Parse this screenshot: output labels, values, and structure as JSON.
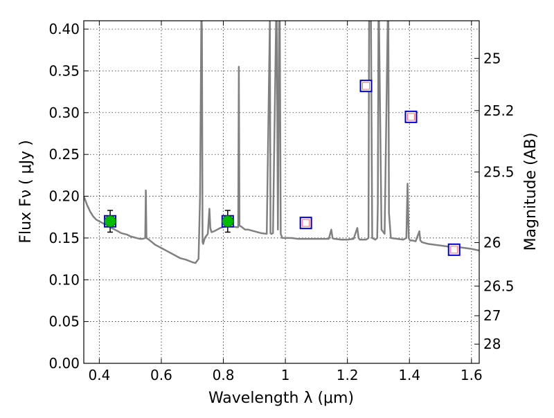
{
  "chart_data": {
    "type": "line",
    "xlabel": "Wavelength  λ (μm)",
    "ylabel": "Flux  Fν ( μJy )",
    "y2label": "Magnitude (AB)",
    "xlim": [
      0.35,
      1.625
    ],
    "ylim": [
      0.0,
      0.41
    ],
    "grid": true,
    "x_ticks": [
      0.4,
      0.6,
      0.8,
      1.0,
      1.2,
      1.4,
      1.6
    ],
    "x_tick_labels": [
      "0.4",
      "0.6",
      "0.8",
      "1",
      "1.2",
      "1.4",
      "1.6"
    ],
    "y_ticks": [
      0.0,
      0.05,
      0.1,
      0.15,
      0.2,
      0.25,
      0.3,
      0.35,
      0.4
    ],
    "y_tick_labels": [
      "0.00",
      "0.05",
      "0.10",
      "0.15",
      "0.20",
      "0.25",
      "0.30",
      "0.35",
      "0.40"
    ],
    "y2_ticks": [
      {
        "label": "25",
        "flux": 0.365
      },
      {
        "label": "25.2",
        "flux": 0.3025
      },
      {
        "label": "25.5",
        "flux": 0.229
      },
      {
        "label": "26",
        "flux": 0.1445
      },
      {
        "label": "26.5",
        "flux": 0.0925
      },
      {
        "label": "27",
        "flux": 0.057
      },
      {
        "label": "28",
        "flux": 0.023
      }
    ],
    "series": [
      {
        "role": "model-spectrum",
        "color": "#808080",
        "x": [
          0.35,
          0.36,
          0.37,
          0.38,
          0.39,
          0.4,
          0.41,
          0.42,
          0.43,
          0.44,
          0.45,
          0.46,
          0.47,
          0.48,
          0.49,
          0.5,
          0.51,
          0.52,
          0.53,
          0.54,
          0.548,
          0.55,
          0.552,
          0.556,
          0.56,
          0.58,
          0.6,
          0.62,
          0.64,
          0.66,
          0.68,
          0.7,
          0.71,
          0.72,
          0.725,
          0.729,
          0.73,
          0.731,
          0.733,
          0.735,
          0.74,
          0.75,
          0.755,
          0.758,
          0.762,
          0.77,
          0.78,
          0.79,
          0.8,
          0.81,
          0.82,
          0.83,
          0.84,
          0.848,
          0.85,
          0.852,
          0.856,
          0.86,
          0.87,
          0.88,
          0.9,
          0.92,
          0.94,
          0.95,
          0.952,
          0.954,
          0.956,
          0.96,
          0.97,
          0.972,
          0.976,
          0.98,
          0.982,
          0.985,
          0.99,
          1.0,
          1.02,
          1.04,
          1.06,
          1.08,
          1.1,
          1.12,
          1.14,
          1.148,
          1.152,
          1.156,
          1.16,
          1.18,
          1.2,
          1.22,
          1.232,
          1.236,
          1.24,
          1.26,
          1.268,
          1.27,
          1.272,
          1.276,
          1.28,
          1.29,
          1.296,
          1.298,
          1.3,
          1.302,
          1.31,
          1.32,
          1.33,
          1.332,
          1.334,
          1.34,
          1.36,
          1.38,
          1.39,
          1.394,
          1.398,
          1.402,
          1.41,
          1.42,
          1.432,
          1.435,
          1.438,
          1.44,
          1.46,
          1.48,
          1.5,
          1.52,
          1.54,
          1.56,
          1.58,
          1.6,
          1.625
        ],
        "y": [
          0.2,
          0.19,
          0.182,
          0.176,
          0.172,
          0.17,
          0.168,
          0.166,
          0.164,
          0.162,
          0.16,
          0.158,
          0.156,
          0.155,
          0.154,
          0.152,
          0.151,
          0.15,
          0.149,
          0.149,
          0.15,
          0.207,
          0.15,
          0.149,
          0.148,
          0.142,
          0.138,
          0.134,
          0.13,
          0.126,
          0.124,
          0.121,
          0.12,
          0.125,
          0.2,
          0.41,
          0.41,
          0.4,
          0.145,
          0.143,
          0.15,
          0.155,
          0.185,
          0.162,
          0.157,
          0.158,
          0.16,
          0.162,
          0.163,
          0.164,
          0.165,
          0.164,
          0.163,
          0.163,
          0.355,
          0.165,
          0.164,
          0.163,
          0.16,
          0.16,
          0.158,
          0.156,
          0.155,
          0.41,
          0.156,
          0.155,
          0.155,
          0.156,
          0.41,
          0.41,
          0.16,
          0.41,
          0.41,
          0.155,
          0.15,
          0.15,
          0.15,
          0.149,
          0.149,
          0.149,
          0.149,
          0.149,
          0.149,
          0.16,
          0.15,
          0.149,
          0.149,
          0.148,
          0.148,
          0.149,
          0.162,
          0.15,
          0.148,
          0.148,
          0.15,
          0.41,
          0.41,
          0.41,
          0.15,
          0.148,
          0.15,
          0.19,
          0.41,
          0.41,
          0.16,
          0.155,
          0.41,
          0.41,
          0.18,
          0.15,
          0.149,
          0.148,
          0.15,
          0.215,
          0.15,
          0.147,
          0.147,
          0.146,
          0.158,
          0.147,
          0.146,
          0.145,
          0.143,
          0.142,
          0.141,
          0.14,
          0.139,
          0.139,
          0.138,
          0.137,
          0.135
        ]
      }
    ],
    "model_points": [
      {
        "x": 0.435,
        "y": 0.17
      },
      {
        "x": 0.814,
        "y": 0.17
      },
      {
        "x": 1.066,
        "y": 0.168
      },
      {
        "x": 1.26,
        "y": 0.332
      },
      {
        "x": 1.405,
        "y": 0.295
      },
      {
        "x": 1.544,
        "y": 0.136
      }
    ],
    "observed_points": [
      {
        "x": 0.435,
        "y": 0.17,
        "err": 0.013
      },
      {
        "x": 0.814,
        "y": 0.17,
        "err": 0.013
      }
    ],
    "colors": {
      "spectrum": "#808080",
      "model_box": "#0000cc",
      "model_inner": "#ff6666",
      "observed": "#00bb00"
    }
  }
}
